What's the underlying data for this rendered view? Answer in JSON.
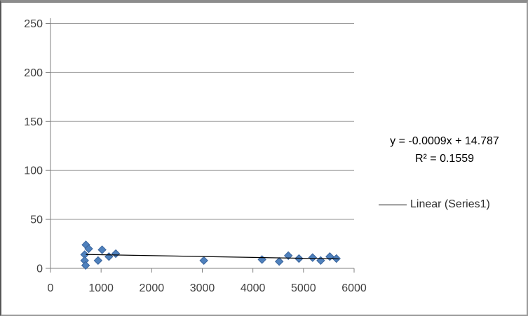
{
  "chart_data": {
    "type": "scatter",
    "title": "",
    "xlabel": "",
    "ylabel": "",
    "grid": "horizontal",
    "legend_position": "right-middle",
    "x_axis": {
      "min": 0,
      "max": 6000,
      "tick_interval": 1000,
      "tick_labels": [
        "0",
        "1000",
        "2000",
        "3000",
        "4000",
        "5000",
        "6000"
      ]
    },
    "y_axis": {
      "min": 0,
      "max": 250,
      "tick_interval": 50,
      "tick_labels": [
        "0",
        "50",
        "100",
        "150",
        "200",
        "250"
      ]
    },
    "series": [
      {
        "name": "Series1",
        "marker": "diamond",
        "marker_fill": "#4f81bd",
        "marker_border": "#39639b",
        "points": [
          [
            700,
            24
          ],
          [
            755,
            20
          ],
          [
            675,
            14
          ],
          [
            675,
            8
          ],
          [
            695,
            3
          ],
          [
            1020,
            19
          ],
          [
            940,
            8
          ],
          [
            1155,
            12
          ],
          [
            1290,
            15
          ],
          [
            3030,
            8
          ],
          [
            4180,
            9
          ],
          [
            4520,
            7
          ],
          [
            4700,
            13
          ],
          [
            4910,
            10
          ],
          [
            5180,
            11
          ],
          [
            5340,
            8
          ],
          [
            5520,
            12
          ],
          [
            5650,
            10
          ]
        ]
      }
    ],
    "trendline": {
      "kind": "linear",
      "series": "Series1",
      "slope": -0.0009,
      "intercept": 14.787,
      "x_start": 700,
      "x_end": 5700,
      "color": "#000000"
    },
    "colors": {
      "axis": "#808080",
      "gridline": "#9d9d9d",
      "tick_label": "#3f3f3f"
    }
  },
  "annotation": {
    "equation": "y = -0.0009x + 14.787",
    "r_squared": "R² = 0.1559"
  },
  "legend": {
    "items": [
      {
        "label": "Linear (Series1)",
        "line_color": "#000000"
      }
    ]
  }
}
